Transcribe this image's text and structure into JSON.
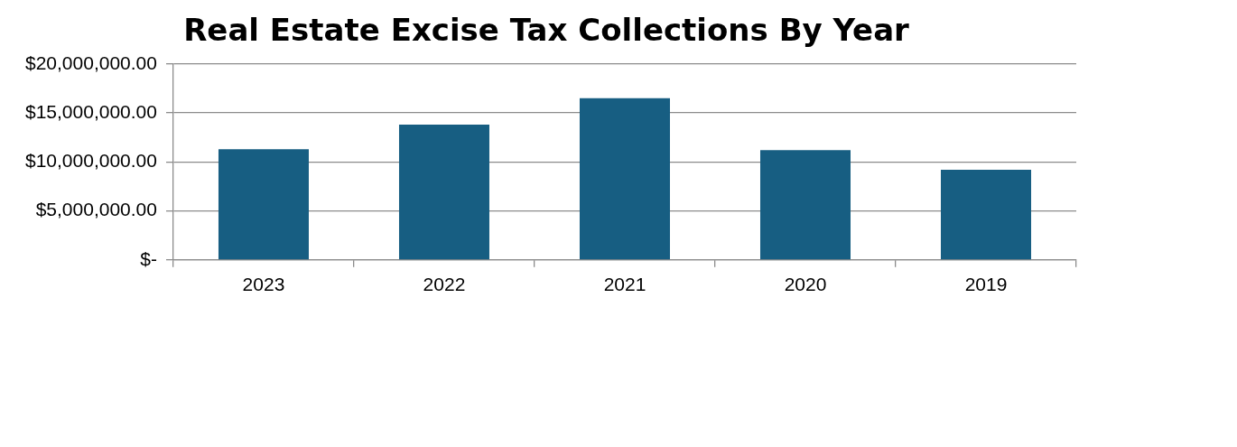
{
  "chart_data": {
    "type": "bar",
    "title": "Real Estate Excise Tax Collections By Year",
    "categories": [
      "2023",
      "2022",
      "2021",
      "2020",
      "2019"
    ],
    "values": [
      11300000,
      13800000,
      16500000,
      11200000,
      9200000
    ],
    "color": "#175e82",
    "ylim": [
      0,
      20000000
    ],
    "yticks": [
      {
        "value": 0,
        "label": "$-"
      },
      {
        "value": 5000000,
        "label": "$5,000,000.00"
      },
      {
        "value": 10000000,
        "label": "$10,000,000.00"
      },
      {
        "value": 15000000,
        "label": "$15,000,000.00"
      },
      {
        "value": 20000000,
        "label": "$20,000,000.00"
      }
    ],
    "grid": "y",
    "legend": false
  }
}
